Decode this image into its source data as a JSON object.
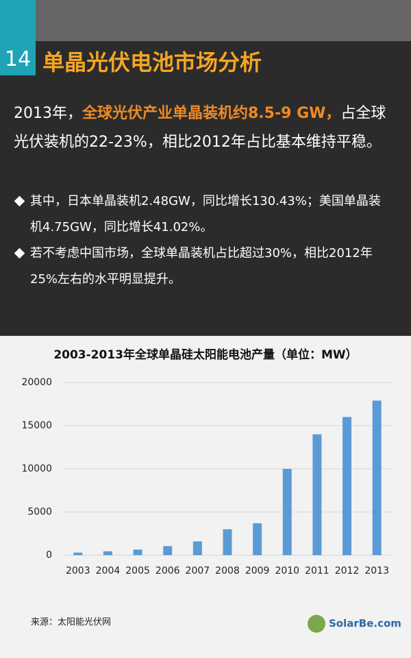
{
  "header": {
    "number": "14",
    "title": "单晶光伏电池市场分析"
  },
  "intro": {
    "before": "2013年，",
    "highlight": "全球光伏产业单晶装机约8.5-9 GW，",
    "after": "占全球光伏装机的22-23%，相比2012年占比基本维持平稳。"
  },
  "bullets": [
    "其中，日本单晶装机2.48GW，同比增长130.43%；美国单晶装机4.75GW，同比增长41.02%。",
    "若不考虑中国市场，全球单晶装机占比超过30%，相比2012年25%左右的水平明显提升。"
  ],
  "chart_data": {
    "type": "bar",
    "title": "2003-2013年全球单晶硅太阳能电池产量（单位：MW）",
    "categories": [
      "2003",
      "2004",
      "2005",
      "2006",
      "2007",
      "2008",
      "2009",
      "2010",
      "2011",
      "2012",
      "2013"
    ],
    "values": [
      300,
      450,
      650,
      1050,
      1600,
      3000,
      3700,
      10000,
      14000,
      16000,
      17900
    ],
    "color": "#5b9bd5",
    "ylim": [
      0,
      20000
    ],
    "yticks": [
      0,
      5000,
      10000,
      15000,
      20000
    ],
    "grid": true
  },
  "source": "来源：太阳能光伏网",
  "logo": "SolarBe.com"
}
